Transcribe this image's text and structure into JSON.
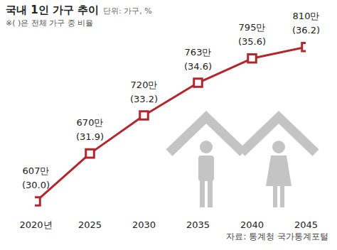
{
  "chart_data": {
    "type": "line",
    "title": "국내 1인 가구 추이",
    "subtitle": "단위: 가구, %",
    "note": "※( )은 전체 가구 중 비율",
    "source": "자료: 통계청 국가통계포털",
    "categories": [
      "2020년",
      "2025",
      "2030",
      "2035",
      "2040",
      "2045"
    ],
    "values": [
      607,
      670,
      720,
      763,
      795,
      810
    ],
    "value_labels": [
      "607만",
      "670만",
      "720만",
      "763만",
      "795만",
      "810만"
    ],
    "ratio": {
      "values": [
        30.0,
        31.9,
        33.2,
        34.6,
        35.6,
        36.2
      ],
      "value_labels": [
        "(30.0)",
        "(31.9)",
        "(33.2)",
        "(34.6)",
        "(35.6)",
        "(36.2)"
      ]
    },
    "ylim": [
      594,
      834
    ],
    "color": "#b3262b",
    "marker": "square",
    "data_labels": true,
    "tick_labels": "x",
    "grid": false
  }
}
